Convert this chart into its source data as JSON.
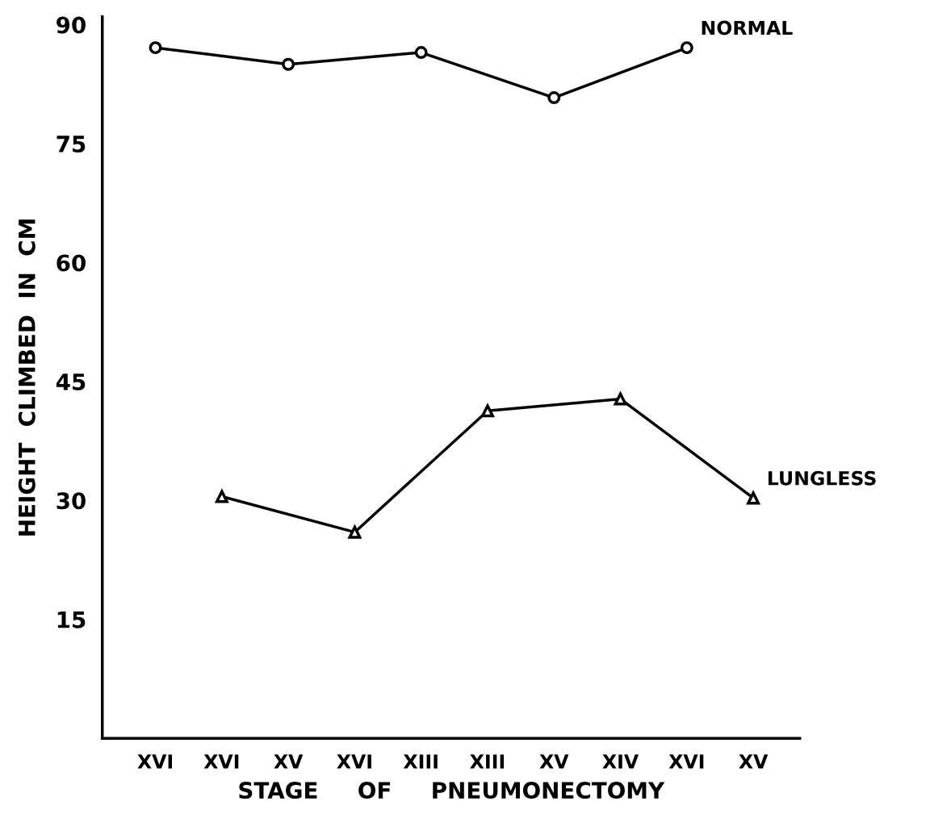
{
  "chart_data": {
    "type": "line",
    "xlabel": "STAGE     OF     PNEUMONECTOMY",
    "ylabel": "HEIGHT  CLIMBED  IN  CM",
    "categories": [
      "XVI",
      "XVI",
      "XV",
      "XVI",
      "XIII",
      "XIII",
      "XV",
      "XIV",
      "XVI",
      "XV"
    ],
    "series": [
      {
        "name": "NORMAL",
        "color": "#000000",
        "marker": "circle",
        "values": [
          87.1,
          null,
          85.0,
          null,
          86.5,
          null,
          80.8,
          null,
          87.1,
          null
        ]
      },
      {
        "name": "LUNGLESS",
        "color": "#000000",
        "marker": "triangle",
        "values": [
          null,
          30.5,
          null,
          26.0,
          null,
          41.3,
          null,
          42.8,
          null,
          30.3
        ]
      }
    ],
    "ylim": [
      0,
      91
    ],
    "yticks": [
      15,
      30,
      45,
      60,
      75,
      90
    ],
    "grid": false,
    "legend": false,
    "line_style": "solid"
  }
}
